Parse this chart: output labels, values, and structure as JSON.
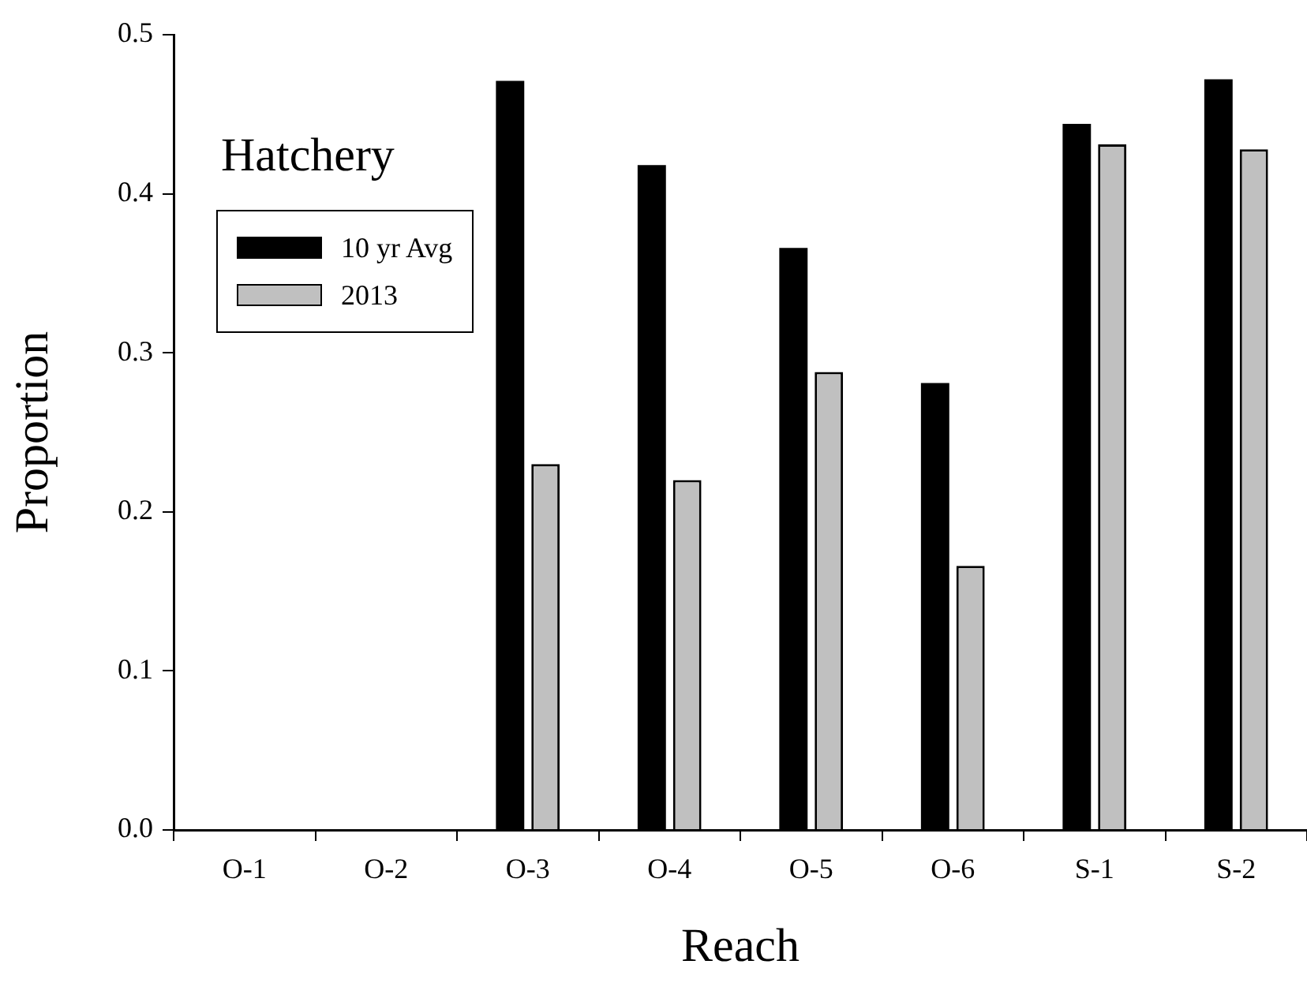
{
  "chart_data": {
    "type": "bar",
    "xlabel": "Reach",
    "ylabel": "Proportion",
    "legend_title": "Hatchery",
    "legend": "top left",
    "grid": false,
    "categories": [
      "O-1",
      "O-2",
      "O-3",
      "O-4",
      "O-5",
      "O-6",
      "S-1",
      "S-2"
    ],
    "series": [
      {
        "name": "10 yr Avg",
        "color": "#000000",
        "values": [
          null,
          null,
          0.471,
          0.418,
          0.366,
          0.281,
          0.444,
          0.472
        ]
      },
      {
        "name": "2013",
        "color": "#c0c0c0",
        "values": [
          null,
          null,
          0.23,
          0.22,
          0.288,
          0.166,
          0.431,
          0.428
        ]
      }
    ],
    "ylim": [
      0,
      0.5
    ],
    "yticks": [
      {
        "value": 0,
        "label": "0.0"
      },
      0.1,
      0.2,
      0.3,
      0.4,
      0.5
    ]
  }
}
